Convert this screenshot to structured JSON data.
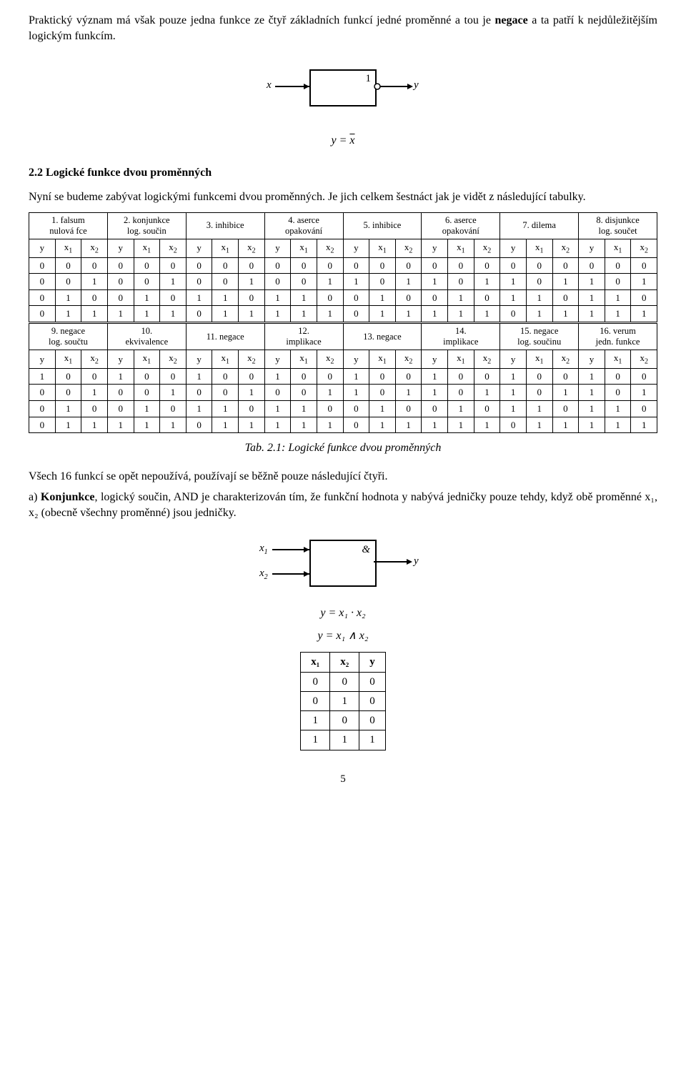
{
  "intro_para": "Praktický význam má však pouze jedna funkce ze čtyř základních funkcí jedné proměnné a tou je ",
  "intro_bold": "negace",
  "intro_rest": " a ta patří k nejdůležitějším logickým funkcím.",
  "not_fig": {
    "x": "x",
    "y": "y",
    "one": "1"
  },
  "eq_not": "y = x̄",
  "sec22": "2.2 Logické funkce dvou proměnných",
  "sec22_para": "Nyní se budeme zabývat logickými funkcemi dvou proměnných. Je jich celkem šestnáct jak je vidět z následující tabulky.",
  "col_hdr": [
    "y",
    "x",
    "x"
  ],
  "col_sub": [
    "",
    "1",
    "2"
  ],
  "func_names_a": [
    "1. falsum\nnulová fce",
    "2. konjunkce\nlog. součin",
    "3. inhibice",
    "4. aserce\nopakování",
    "5. inhibice",
    "6. aserce\nopakování",
    "7. dilema",
    "8. disjunkce\nlog. součet"
  ],
  "func_names_b": [
    "9. negace\nlog. součtu",
    "10.\nekvivalence",
    "11. negace",
    "12.\nimplikace",
    "13. negace",
    "14.\nimplikace",
    "15. negace\nlog. součinu",
    "16. verum\njedn. funkce"
  ],
  "x1x2": [
    [
      0,
      0
    ],
    [
      0,
      1
    ],
    [
      1,
      0
    ],
    [
      1,
      1
    ]
  ],
  "funcs_a": [
    [
      0,
      0,
      0,
      0
    ],
    [
      0,
      0,
      0,
      1
    ],
    [
      0,
      0,
      1,
      0
    ],
    [
      0,
      0,
      1,
      1
    ],
    [
      0,
      1,
      0,
      0
    ],
    [
      0,
      1,
      0,
      1
    ],
    [
      0,
      1,
      1,
      0
    ],
    [
      0,
      1,
      1,
      1
    ]
  ],
  "funcs_b": [
    [
      1,
      0,
      0,
      0
    ],
    [
      1,
      0,
      0,
      1
    ],
    [
      1,
      0,
      1,
      0
    ],
    [
      1,
      0,
      1,
      1
    ],
    [
      1,
      1,
      0,
      0
    ],
    [
      1,
      1,
      0,
      1
    ],
    [
      1,
      1,
      1,
      0
    ],
    [
      1,
      1,
      1,
      1
    ]
  ],
  "tab_caption": "Tab. 2.1: Logické funkce dvou proměnných",
  "para_after_tab": "Všech 16 funkcí se opět nepoužívá, používají se běžně pouze následující čtyři.",
  "and_para_a": "a) ",
  "and_para_bold": "Konjunkce",
  "and_para_rest": ", logický součin, AND je charakterizován tím, že funkční hodnota  y  nabývá jedničky pouze tehdy, když obě proměnné  x₁,  x₂  (obecně všechny proměnné) jsou jedničky.",
  "and_fig": {
    "x1": "x",
    "x2": "x",
    "y": "y",
    "amp": "&"
  },
  "eq_and1": "y = x₁ · x₂",
  "eq_and2": "y = x₁ ∧ x₂",
  "and_table": {
    "head": [
      "x₁",
      "x₂",
      "y"
    ],
    "rows": [
      [
        0,
        0,
        0
      ],
      [
        0,
        1,
        0
      ],
      [
        1,
        0,
        0
      ],
      [
        1,
        1,
        1
      ]
    ]
  },
  "pagenum": "5"
}
